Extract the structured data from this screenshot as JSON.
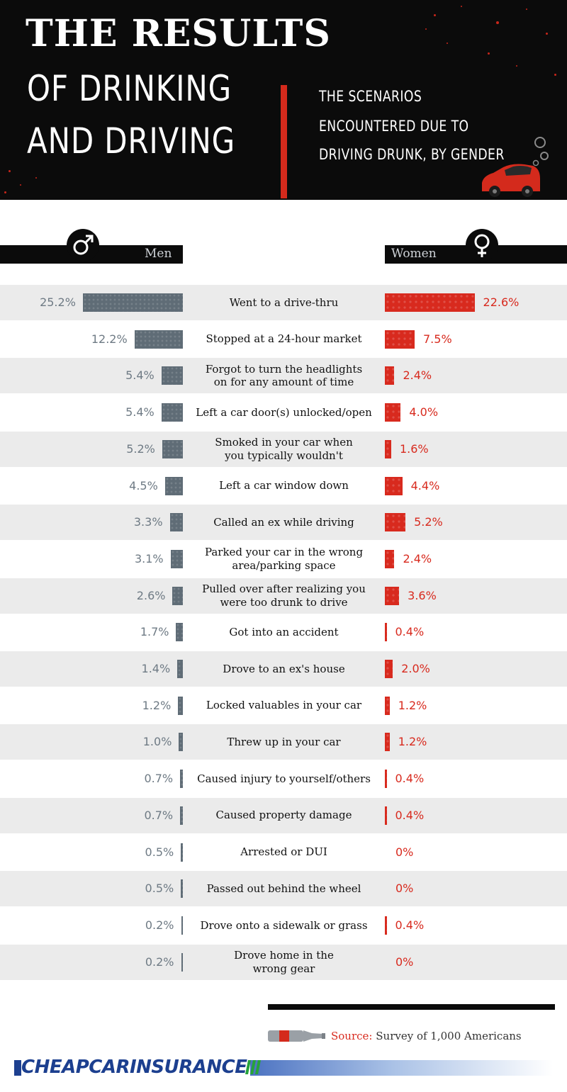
{
  "header": {
    "title_line1": "THE RESULTS",
    "title_line2": "OF DRINKING",
    "title_line3": "AND DRIVING",
    "subtitle_line1": "THE SCENARIOS",
    "subtitle_line2": "ENCOUNTERED DUE TO",
    "subtitle_line3": "DRIVING DRUNK, BY GENDER"
  },
  "legend": {
    "men": "Men",
    "women": "Women"
  },
  "chart_data": {
    "type": "bar",
    "title": "THE RESULTS OF DRINKING AND DRIVING",
    "subtitle": "THE SCENARIOS ENCOUNTERED DUE TO DRIVING DRUNK, BY GENDER",
    "categories": [
      "Went to a drive-thru",
      "Stopped at a 24-hour market",
      "Forgot to turn the headlights on for any amount of time",
      "Left a car door(s) unlocked/open",
      "Smoked in your car when you typically wouldn't",
      "Left a car window down",
      "Called an ex while driving",
      "Parked your car in the wrong area/parking space",
      "Pulled over after realizing you were too drunk to drive",
      "Got into an accident",
      "Drove to an ex's house",
      "Locked valuables in your car",
      "Threw up in your car",
      "Caused injury to yourself/others",
      "Caused property damage",
      "Arrested or DUI",
      "Passed out behind the wheel",
      "Drove onto a sidewalk or grass",
      "Drove home in the wrong gear"
    ],
    "category_lines": [
      [
        "Went to a drive-thru"
      ],
      [
        "Stopped at a 24-hour market"
      ],
      [
        "Forgot to turn the headlights",
        "on for any amount of time"
      ],
      [
        "Left a car door(s) unlocked/open"
      ],
      [
        "Smoked in your car when",
        "you typically wouldn't"
      ],
      [
        "Left a car window down"
      ],
      [
        "Called an ex while driving"
      ],
      [
        "Parked your car in the wrong",
        "area/parking space"
      ],
      [
        "Pulled over after realizing you",
        "were too drunk to drive"
      ],
      [
        "Got into an accident"
      ],
      [
        "Drove to an ex's house"
      ],
      [
        "Locked valuables in your car"
      ],
      [
        "Threw up in your car"
      ],
      [
        "Caused injury to yourself/others"
      ],
      [
        "Caused property damage"
      ],
      [
        "Arrested or DUI"
      ],
      [
        "Passed out behind the wheel"
      ],
      [
        "Drove onto a sidewalk or grass"
      ],
      [
        "Drove home in the",
        "wrong gear"
      ]
    ],
    "series": [
      {
        "name": "Men",
        "color": "#5f6c76",
        "values": [
          25.2,
          12.2,
          5.4,
          5.4,
          5.2,
          4.5,
          3.3,
          3.1,
          2.6,
          1.7,
          1.4,
          1.2,
          1.0,
          0.7,
          0.7,
          0.5,
          0.5,
          0.2,
          0.2
        ],
        "labels": [
          "25.2%",
          "12.2%",
          "5.4%",
          "5.4%",
          "5.2%",
          "4.5%",
          "3.3%",
          "3.1%",
          "2.6%",
          "1.7%",
          "1.4%",
          "1.2%",
          "1.0%",
          "0.7%",
          "0.7%",
          "0.5%",
          "0.5%",
          "0.2%",
          "0.2%"
        ]
      },
      {
        "name": "Women",
        "color": "#d82a1e",
        "values": [
          22.6,
          7.5,
          2.4,
          4.0,
          1.6,
          4.4,
          5.2,
          2.4,
          3.6,
          0.4,
          2.0,
          1.2,
          1.2,
          0.4,
          0.4,
          0,
          0,
          0.4,
          0
        ],
        "labels": [
          "22.6%",
          "7.5%",
          "2.4%",
          "4.0%",
          "1.6%",
          "4.4%",
          "5.2%",
          "2.4%",
          "3.6%",
          "0.4%",
          "2.0%",
          "1.2%",
          "1.2%",
          "0.4%",
          "0.4%",
          "0%",
          "0%",
          "0.4%",
          "0%"
        ]
      }
    ]
  },
  "footer": {
    "source_key": "Source:",
    "source_text": " Survey of 1,000 Americans",
    "brand": "CHEAPCARINSURANCE"
  }
}
